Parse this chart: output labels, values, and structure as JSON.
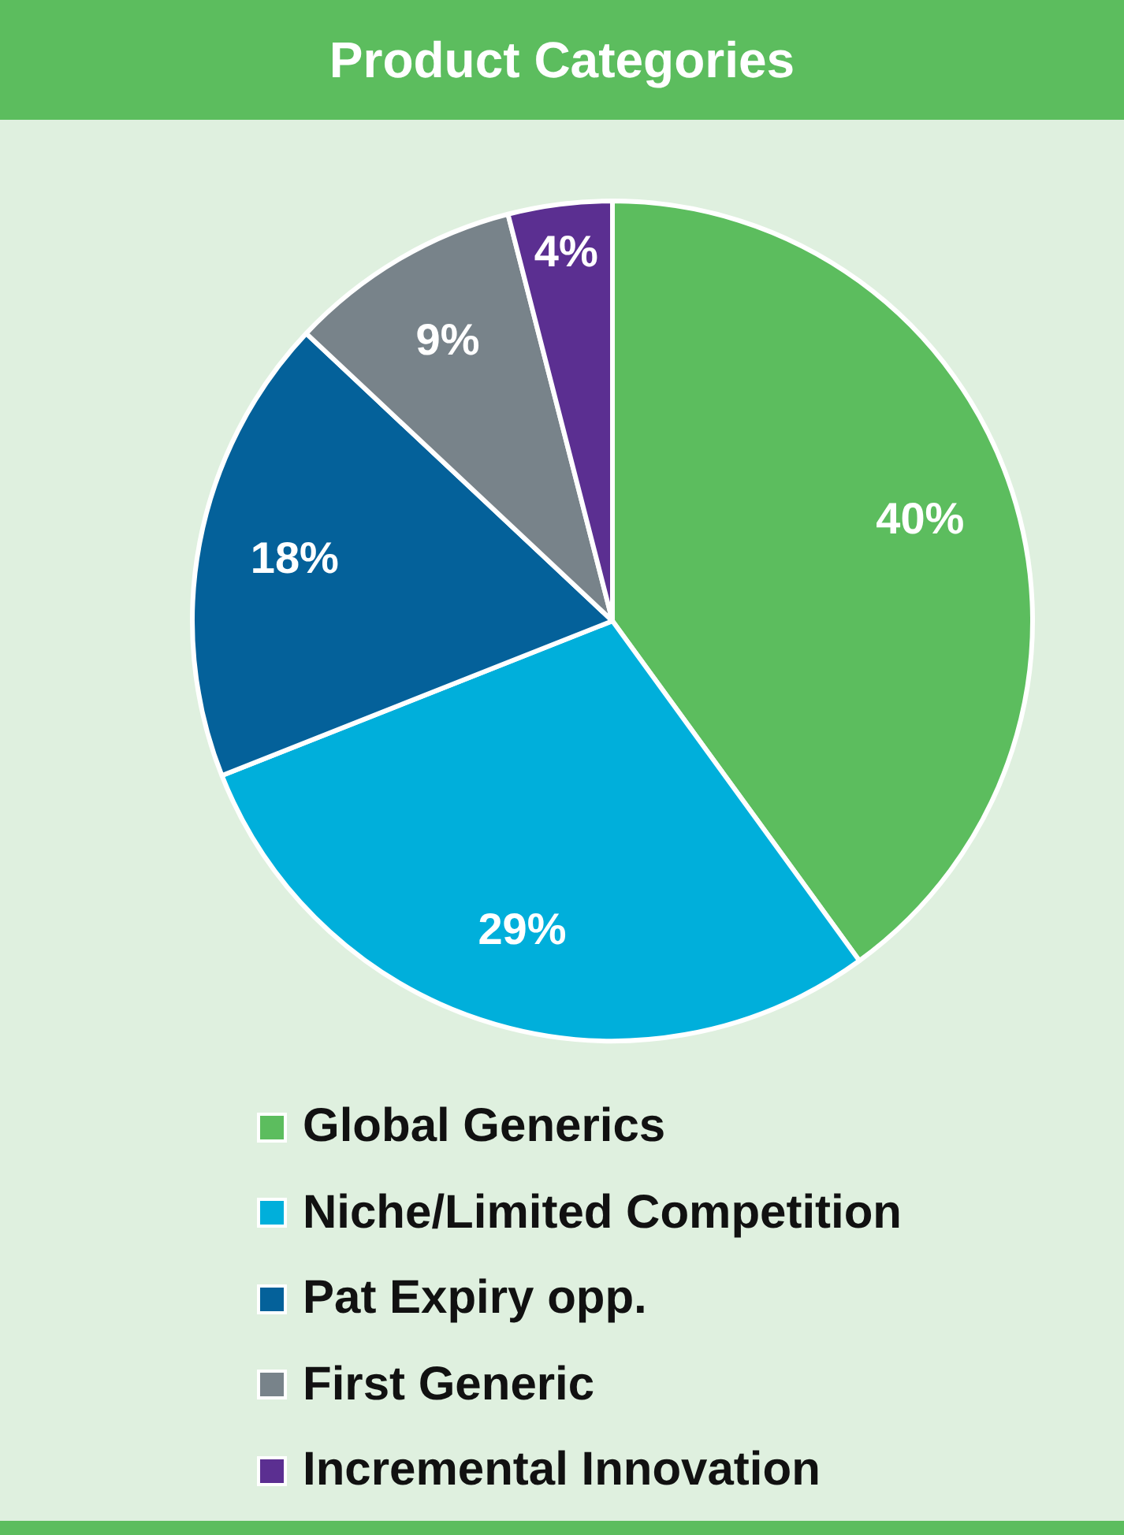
{
  "chart_data": {
    "type": "pie",
    "title": "Product Categories",
    "categories": [
      "Global Generics",
      "Niche/Limited Competition",
      "Pat Expiry opp.",
      "First Generic",
      "Incremental Innovation"
    ],
    "values": [
      40,
      29,
      18,
      9,
      4
    ],
    "colors": [
      "#5cbd5e",
      "#00afdb",
      "#04619a",
      "#78838a",
      "#5b2f91"
    ],
    "value_labels": [
      "40%",
      "29%",
      "18%",
      "9%",
      "4%"
    ],
    "legend": "bottom"
  }
}
